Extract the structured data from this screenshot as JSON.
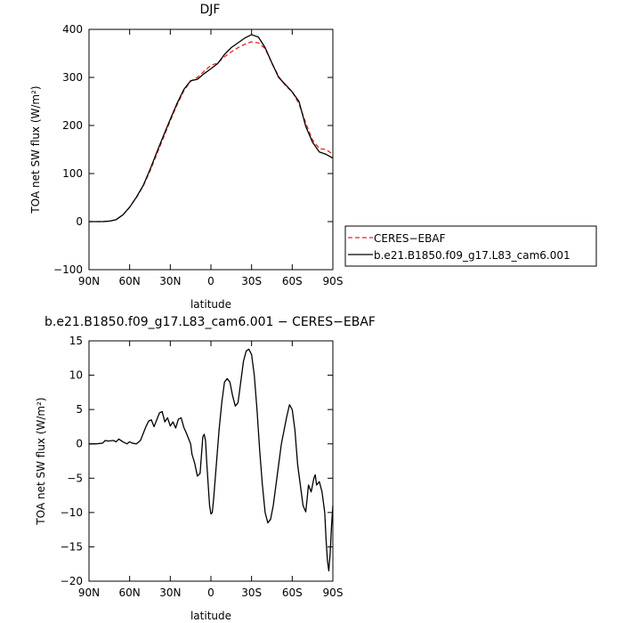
{
  "chart_data": [
    {
      "type": "line",
      "title": "DJF",
      "xlabel": "latitude",
      "ylabel": "TOA net SW flux (W/m²)",
      "xlim": [
        90,
        -90
      ],
      "ylim": [
        -100,
        400
      ],
      "x_ticks": [
        90,
        60,
        30,
        0,
        -30,
        -60,
        -90
      ],
      "x_tick_labels": [
        "90N",
        "60N",
        "30N",
        "0",
        "30S",
        "60S",
        "90S"
      ],
      "y_ticks": [
        -100,
        0,
        100,
        200,
        300,
        400
      ],
      "y_tick_labels": [
        "−100",
        "0",
        "100",
        "200",
        "300",
        "400"
      ],
      "legend": {
        "position": "right",
        "entries": [
          "CERES−EBAF",
          "b.e21.B1850.f09_g17.L83_cam6.001"
        ]
      },
      "x": [
        90,
        80,
        75,
        70,
        65,
        60,
        55,
        50,
        45,
        40,
        35,
        30,
        25,
        20,
        15,
        10,
        5,
        0,
        -5,
        -10,
        -15,
        -20,
        -25,
        -30,
        -35,
        -40,
        -45,
        -50,
        -55,
        -60,
        -65,
        -70,
        -75,
        -80,
        -85,
        -90
      ],
      "series": [
        {
          "name": "CERES−EBAF",
          "color": "#e8261c",
          "dash": "dashed",
          "values": [
            0,
            0,
            1,
            4,
            14,
            30,
            50,
            74,
            105,
            140,
            175,
            210,
            243,
            272,
            292,
            300,
            313,
            325,
            330,
            343,
            353,
            362,
            369,
            374,
            372,
            360,
            330,
            302,
            283,
            270,
            245,
            205,
            170,
            152,
            150,
            140
          ]
        },
        {
          "name": "b.e21.B1850.f09_g17.L83_cam6.001",
          "color": "#000000",
          "dash": "solid",
          "values": [
            0,
            0,
            1,
            4,
            14,
            30,
            51,
            75,
            108,
            144,
            179,
            213,
            246,
            275,
            293,
            296,
            308,
            318,
            329,
            348,
            362,
            372,
            382,
            389,
            384,
            362,
            330,
            300,
            285,
            270,
            250,
            198,
            165,
            145,
            140,
            132
          ]
        }
      ]
    },
    {
      "type": "line",
      "title": "b.e21.B1850.f09_g17.L83_cam6.001 − CERES−EBAF",
      "xlabel": "latitude",
      "ylabel": "TOA net SW flux (W/m²)",
      "xlim": [
        90,
        -90
      ],
      "ylim": [
        -20,
        15
      ],
      "x_ticks": [
        90,
        60,
        30,
        0,
        -30,
        -60,
        -90
      ],
      "x_tick_labels": [
        "90N",
        "60N",
        "30N",
        "0",
        "30S",
        "60S",
        "90S"
      ],
      "y_ticks": [
        -20,
        -15,
        -10,
        -5,
        0,
        5,
        10,
        15
      ],
      "y_tick_labels": [
        "−20",
        "−15",
        "−10",
        "−5",
        "0",
        "5",
        "10",
        "15"
      ],
      "x": [
        90,
        85,
        80,
        78,
        76,
        72,
        70,
        68,
        65,
        62,
        60,
        58,
        55,
        52,
        50,
        48,
        46,
        44,
        42,
        40,
        38,
        36,
        34,
        32,
        30,
        28,
        26,
        24,
        22,
        20,
        18,
        16,
        15,
        14,
        12,
        10,
        8,
        6,
        5,
        4,
        3,
        2,
        1,
        0,
        -1,
        -2,
        -4,
        -6,
        -8,
        -10,
        -12,
        -14,
        -16,
        -18,
        -20,
        -22,
        -24,
        -26,
        -28,
        -30,
        -32,
        -34,
        -36,
        -38,
        -40,
        -42,
        -44,
        -46,
        -48,
        -50,
        -52,
        -54,
        -56,
        -58,
        -60,
        -62,
        -64,
        -66,
        -68,
        -70,
        -71,
        -72,
        -74,
        -76,
        -77,
        -78,
        -80,
        -82,
        -84,
        -85,
        -86,
        -87,
        -88,
        -89,
        -90
      ],
      "values": [
        0,
        0,
        0.1,
        0.5,
        0.4,
        0.5,
        0.3,
        0.7,
        0.3,
        0,
        0.3,
        0.1,
        0,
        0.5,
        1.5,
        2.5,
        3.3,
        3.5,
        2.5,
        3.5,
        4.5,
        4.7,
        3.2,
        3.8,
        2.6,
        3.2,
        2.3,
        3.6,
        3.8,
        2.4,
        1.5,
        0.5,
        0,
        -1.5,
        -2.8,
        -4.7,
        -4.3,
        1,
        1.4,
        0.5,
        -3,
        -6,
        -9,
        -10.2,
        -10,
        -8,
        -3,
        2,
        6,
        9,
        9.5,
        9,
        7,
        5.5,
        6,
        9,
        12,
        13.5,
        13.8,
        13,
        10,
        5,
        -1,
        -6,
        -10,
        -11.5,
        -11,
        -9,
        -6,
        -3,
        0,
        2,
        4,
        5.7,
        5,
        2,
        -3,
        -6,
        -9,
        -9.9,
        -8,
        -6,
        -7,
        -5,
        -4.5,
        -6,
        -5.5,
        -7,
        -10,
        -14,
        -17,
        -18.5,
        -16,
        -12,
        -9
      ]
    }
  ]
}
